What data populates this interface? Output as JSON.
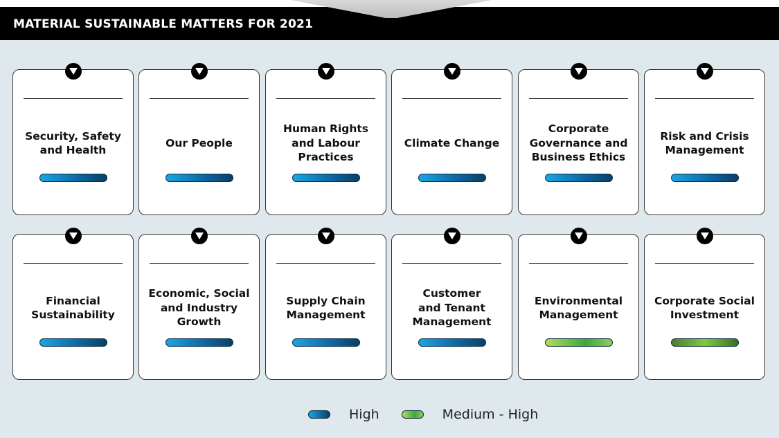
{
  "header": {
    "title": "MATERIAL SUSTAINABLE MATTERS FOR 2021"
  },
  "colors": {
    "high": "#1a8fd0",
    "medium_high": "#6cc04a",
    "background": "#dfe8ed",
    "header_bg": "#000000"
  },
  "cards": [
    {
      "title": "Security, Safety\nand Health",
      "level": "High",
      "marker_icon": "chevron-down-icon"
    },
    {
      "title": "Our People",
      "level": "High",
      "marker_icon": "chevron-down-icon"
    },
    {
      "title": "Human Rights\nand Labour\nPractices",
      "level": "High",
      "marker_icon": "chevron-down-icon"
    },
    {
      "title": "Climate Change",
      "level": "High",
      "marker_icon": "chevron-down-icon"
    },
    {
      "title": "Corporate\nGovernance and\nBusiness Ethics",
      "level": "High",
      "marker_icon": "chevron-down-icon"
    },
    {
      "title": "Risk and Crisis\nManagement",
      "level": "High",
      "marker_icon": "chevron-down-icon"
    },
    {
      "title": "Financial\nSustainability",
      "level": "High",
      "marker_icon": "chevron-down-icon"
    },
    {
      "title": "Economic, Social\nand Industry\nGrowth",
      "level": "High",
      "marker_icon": "chevron-down-icon"
    },
    {
      "title": "Supply Chain\nManagement",
      "level": "High",
      "marker_icon": "chevron-down-icon"
    },
    {
      "title": "Customer\nand Tenant\nManagement",
      "level": "High",
      "marker_icon": "chevron-down-icon"
    },
    {
      "title": "Environmental\nManagement",
      "level": "Medium - High",
      "marker_icon": "chevron-down-icon"
    },
    {
      "title": "Corporate Social\nInvestment",
      "level": "Medium - High",
      "marker_icon": "chevron-down-icon"
    }
  ],
  "legend": {
    "high_label": "High",
    "medium_high_label": "Medium - High"
  }
}
